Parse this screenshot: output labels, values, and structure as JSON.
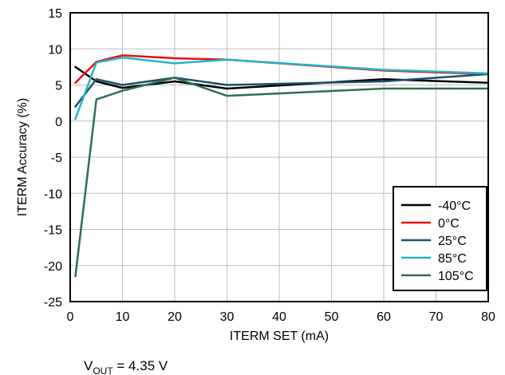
{
  "chart_data": {
    "type": "line",
    "xlabel": "ITERM SET (mA)",
    "ylabel": "ITERM Accuracy (%)",
    "xlim": [
      0,
      80
    ],
    "ylim": [
      -25,
      15
    ],
    "xticks": [
      0,
      10,
      20,
      30,
      40,
      50,
      60,
      70,
      80
    ],
    "yticks": [
      15,
      10,
      5,
      0,
      -5,
      -10,
      -15,
      -20,
      -25
    ],
    "grid": true,
    "legend_position": "bottom-right",
    "series": [
      {
        "name": "-40°C",
        "color": "#000000",
        "x": [
          1,
          5,
          10,
          20,
          30,
          60,
          80
        ],
        "y": [
          7.5,
          5.5,
          4.6,
          5.5,
          4.5,
          5.8,
          5.3
        ]
      },
      {
        "name": "0°C",
        "color": "#e3120b",
        "x": [
          1,
          5,
          10,
          20,
          30,
          60,
          80
        ],
        "y": [
          5.3,
          8.2,
          9.1,
          8.7,
          8.5,
          7.0,
          6.5
        ]
      },
      {
        "name": "25°C",
        "color": "#1d4e6b",
        "x": [
          1,
          5,
          10,
          20,
          30,
          60,
          80
        ],
        "y": [
          2.0,
          5.8,
          5.0,
          6.0,
          5.0,
          5.5,
          6.5
        ]
      },
      {
        "name": "85°C",
        "color": "#22b5c8",
        "x": [
          1,
          5,
          10,
          20,
          30,
          60,
          80
        ],
        "y": [
          0.3,
          8.1,
          8.8,
          8.0,
          8.5,
          7.1,
          6.6
        ]
      },
      {
        "name": "105°C",
        "color": "#2e6e52",
        "x": [
          1,
          5,
          10,
          20,
          30,
          60,
          80
        ],
        "y": [
          -21.5,
          3.0,
          4.2,
          6.0,
          3.5,
          4.5,
          4.5
        ]
      }
    ]
  },
  "note": {
    "prefix": "V",
    "subscript": "OUT",
    "suffix": " = 4.35 V"
  }
}
